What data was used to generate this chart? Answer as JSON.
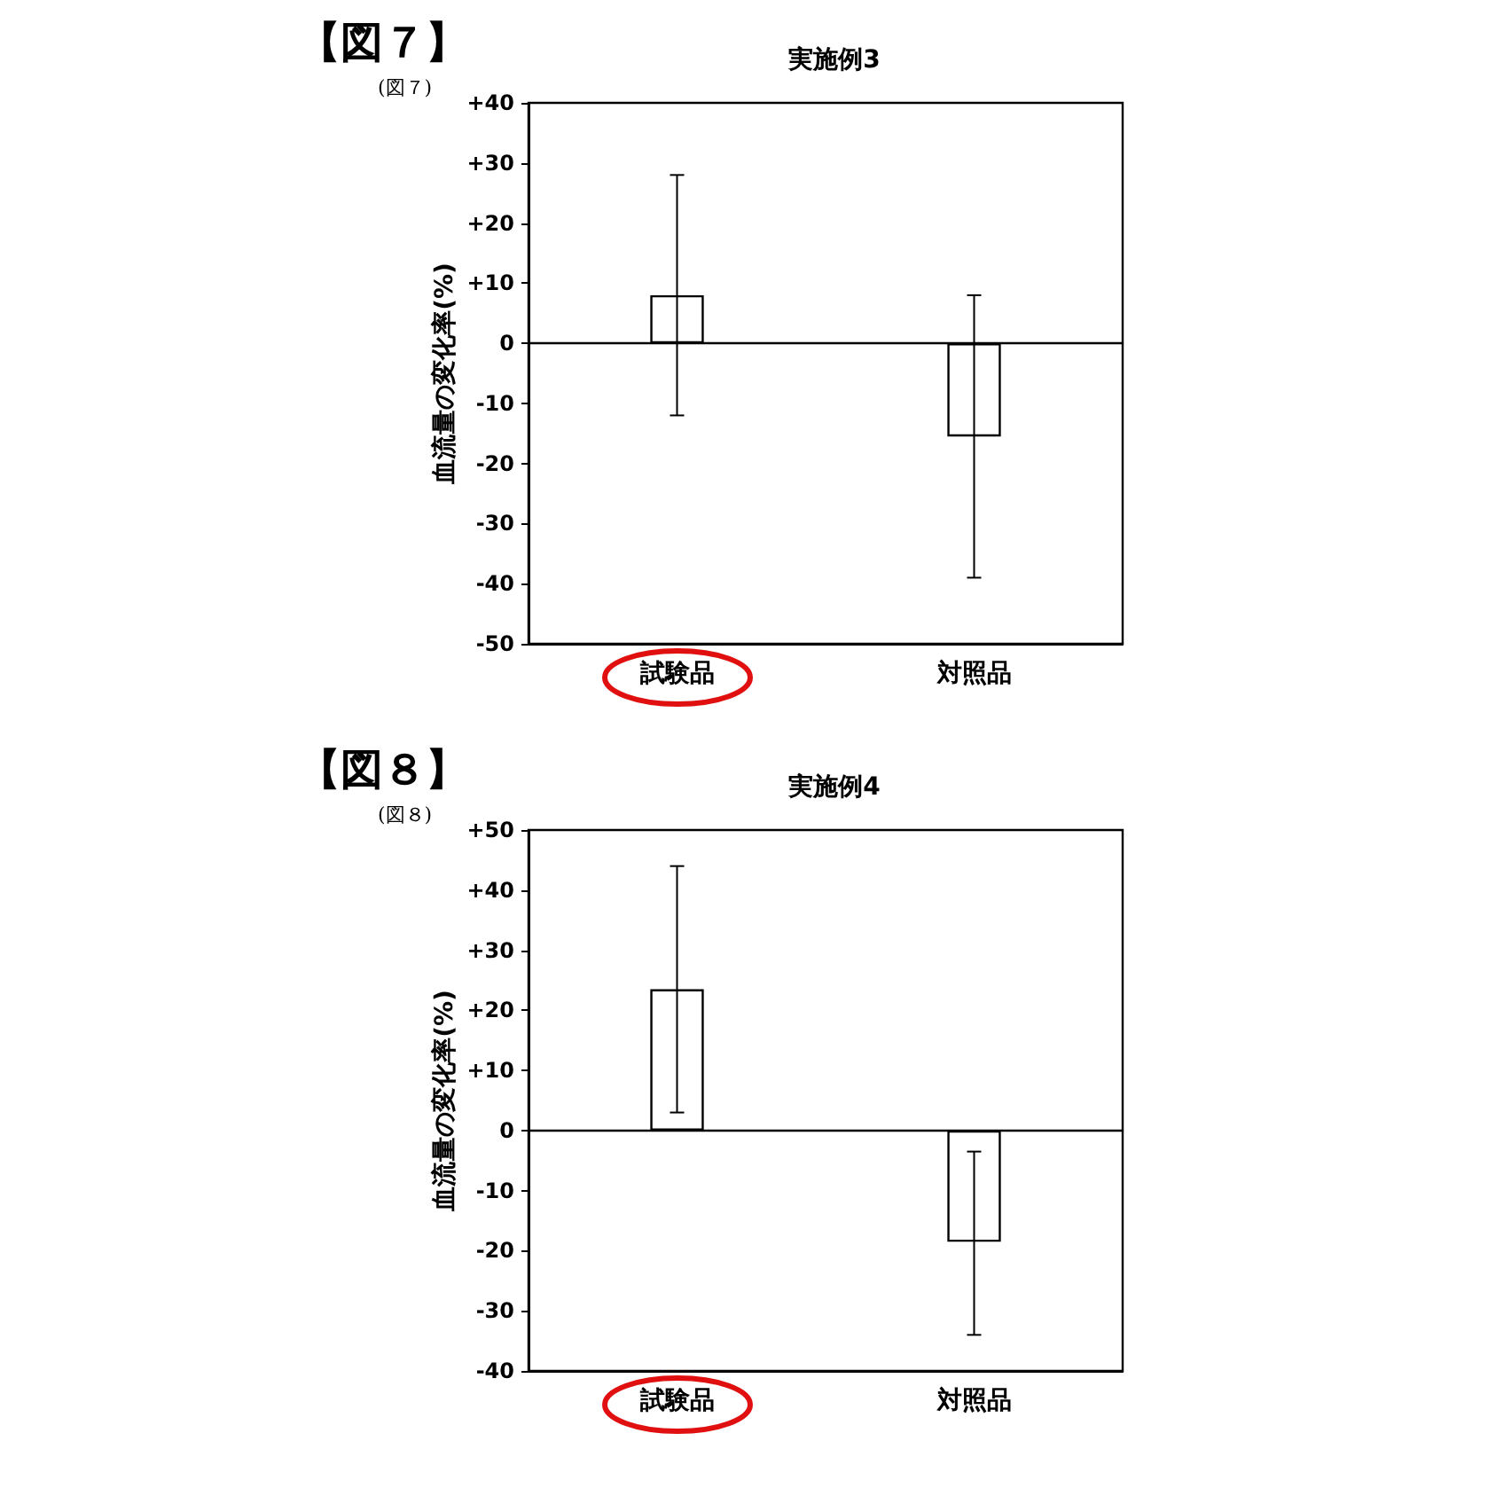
{
  "chart_data": [
    {
      "type": "bar",
      "title": "実施例3",
      "ylabel": "血流量の変化率(%)",
      "annotations": [
        "【図７】",
        "(図７)"
      ],
      "categories": [
        "試験品",
        "対照品"
      ],
      "values": [
        8,
        -15.5
      ],
      "colors": [
        "#ffffff",
        "#ffffff"
      ],
      "errors": [
        [
          -12,
          28
        ],
        [
          -39,
          8
        ]
      ],
      "ylim": [
        -50,
        40
      ],
      "yticks": [
        {
          "value": -50,
          "label": "-50"
        },
        {
          "value": -40,
          "label": "-40"
        },
        {
          "value": -30,
          "label": "-30"
        },
        {
          "value": -20,
          "label": "-20"
        },
        {
          "value": -10,
          "label": "-10"
        },
        0,
        {
          "value": 10,
          "label": "+10"
        },
        {
          "value": 20,
          "label": "+20"
        },
        {
          "value": 30,
          "label": "+30"
        },
        {
          "value": 40,
          "label": "+40"
        }
      ]
    },
    {
      "type": "bar",
      "title": "実施例4",
      "ylabel": "血流量の変化率(%)",
      "annotations": [
        "【図８】",
        "(図８)"
      ],
      "categories": [
        "試験品",
        "対照品"
      ],
      "values": [
        23.5,
        -18.5
      ],
      "colors": [
        "#ffffff",
        "#ffffff"
      ],
      "errors": [
        [
          3,
          44
        ],
        [
          -34,
          -3.5
        ]
      ],
      "ylim": [
        -40,
        50
      ],
      "yticks": [
        {
          "value": -40,
          "label": "-40"
        },
        {
          "value": -30,
          "label": "-30"
        },
        {
          "value": -20,
          "label": "-20"
        },
        {
          "value": -10,
          "label": "-10"
        },
        0,
        {
          "value": 10,
          "label": "+10"
        },
        {
          "value": 20,
          "label": "+20"
        },
        {
          "value": 30,
          "label": "+30"
        },
        {
          "value": 40,
          "label": "+40"
        },
        {
          "value": 50,
          "label": "+50"
        }
      ]
    }
  ]
}
